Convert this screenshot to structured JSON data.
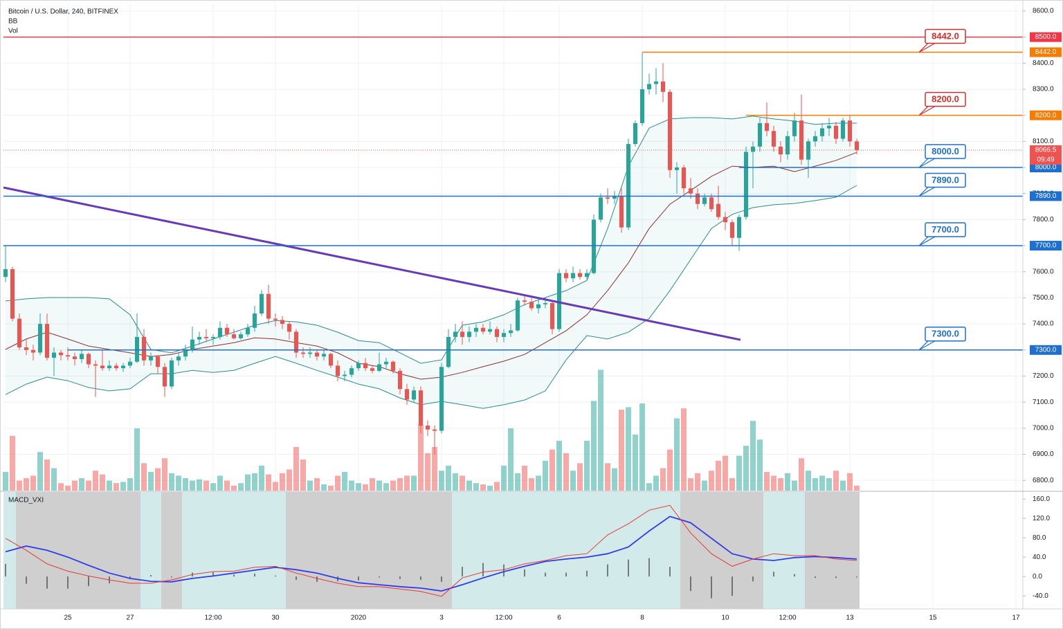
{
  "chart_data": {
    "type": "candlestick",
    "title": "Bitcoin / U.S. Dollar, 240, BITFINEX",
    "indicators": [
      "BB",
      "Vol"
    ],
    "up_color": "#26a69a",
    "down_color": "#ef5350",
    "candles": [
      [
        7580,
        7700,
        7560,
        7610
      ],
      [
        7610,
        7620,
        7410,
        7420
      ],
      [
        7420,
        7440,
        7300,
        7310
      ],
      [
        7310,
        7340,
        7280,
        7300
      ],
      [
        7300,
        7320,
        7260,
        7290
      ],
      [
        7290,
        7440,
        7280,
        7400
      ],
      [
        7400,
        7440,
        7260,
        7270
      ],
      [
        7270,
        7310,
        7200,
        7290
      ],
      [
        7290,
        7300,
        7260,
        7280
      ],
      [
        7280,
        7310,
        7260,
        7275
      ],
      [
        7275,
        7290,
        7240,
        7265
      ],
      [
        7265,
        7300,
        7250,
        7285
      ],
      [
        7285,
        7290,
        7230,
        7245
      ],
      [
        7245,
        7260,
        7120,
        7240
      ],
      [
        7240,
        7300,
        7220,
        7230
      ],
      [
        7230,
        7260,
        7220,
        7240
      ],
      [
        7240,
        7250,
        7220,
        7230
      ],
      [
        7230,
        7250,
        7215,
        7240
      ],
      [
        7240,
        7270,
        7230,
        7255
      ],
      [
        7255,
        7440,
        7250,
        7350
      ],
      [
        7350,
        7380,
        7240,
        7260
      ],
      [
        7260,
        7290,
        7240,
        7275
      ],
      [
        7275,
        7280,
        7210,
        7235
      ],
      [
        7235,
        7250,
        7120,
        7160
      ],
      [
        7160,
        7270,
        7150,
        7260
      ],
      [
        7260,
        7290,
        7240,
        7275
      ],
      [
        7275,
        7320,
        7260,
        7300
      ],
      [
        7300,
        7390,
        7290,
        7340
      ],
      [
        7340,
        7370,
        7320,
        7350
      ],
      [
        7350,
        7380,
        7330,
        7345
      ],
      [
        7345,
        7360,
        7320,
        7350
      ],
      [
        7350,
        7410,
        7340,
        7385
      ],
      [
        7385,
        7400,
        7350,
        7360
      ],
      [
        7360,
        7380,
        7340,
        7345
      ],
      [
        7345,
        7370,
        7340,
        7360
      ],
      [
        7360,
        7400,
        7350,
        7385
      ],
      [
        7385,
        7470,
        7370,
        7440
      ],
      [
        7440,
        7530,
        7430,
        7515
      ],
      [
        7515,
        7550,
        7400,
        7420
      ],
      [
        7420,
        7440,
        7390,
        7415
      ],
      [
        7415,
        7430,
        7380,
        7400
      ],
      [
        7400,
        7410,
        7340,
        7370
      ],
      [
        7370,
        7380,
        7270,
        7290
      ],
      [
        7290,
        7310,
        7270,
        7285
      ],
      [
        7285,
        7310,
        7270,
        7290
      ],
      [
        7290,
        7300,
        7260,
        7275
      ],
      [
        7275,
        7300,
        7260,
        7285
      ],
      [
        7285,
        7290,
        7230,
        7240
      ],
      [
        7240,
        7260,
        7180,
        7200
      ],
      [
        7200,
        7220,
        7180,
        7205
      ],
      [
        7205,
        7240,
        7195,
        7230
      ],
      [
        7230,
        7260,
        7220,
        7250
      ],
      [
        7250,
        7270,
        7220,
        7230
      ],
      [
        7230,
        7240,
        7210,
        7220
      ],
      [
        7220,
        7290,
        7215,
        7245
      ],
      [
        7245,
        7270,
        7230,
        7255
      ],
      [
        7255,
        7260,
        7210,
        7220
      ],
      [
        7220,
        7230,
        7130,
        7150
      ],
      [
        7150,
        7170,
        7090,
        7110
      ],
      [
        7110,
        7160,
        7100,
        7145
      ],
      [
        7145,
        7160,
        6980,
        7010
      ],
      [
        7010,
        7030,
        6970,
        6995
      ],
      [
        6995,
        7010,
        6900,
        6990
      ],
      [
        6990,
        7250,
        6980,
        7235
      ],
      [
        7235,
        7380,
        7230,
        7350
      ],
      [
        7350,
        7400,
        7330,
        7370
      ],
      [
        7370,
        7410,
        7320,
        7350
      ],
      [
        7350,
        7390,
        7330,
        7370
      ],
      [
        7370,
        7400,
        7350,
        7385
      ],
      [
        7385,
        7400,
        7360,
        7370
      ],
      [
        7370,
        7410,
        7360,
        7380
      ],
      [
        7380,
        7390,
        7330,
        7350
      ],
      [
        7350,
        7380,
        7330,
        7365
      ],
      [
        7365,
        7400,
        7350,
        7375
      ],
      [
        7375,
        7500,
        7370,
        7490
      ],
      [
        7490,
        7510,
        7470,
        7485
      ],
      [
        7485,
        7500,
        7450,
        7460
      ],
      [
        7460,
        7490,
        7440,
        7475
      ],
      [
        7475,
        7500,
        7460,
        7480
      ],
      [
        7480,
        7490,
        7360,
        7380
      ],
      [
        7380,
        7610,
        7370,
        7595
      ],
      [
        7595,
        7610,
        7560,
        7575
      ],
      [
        7575,
        7620,
        7560,
        7595
      ],
      [
        7595,
        7610,
        7570,
        7580
      ],
      [
        7580,
        7610,
        7570,
        7595
      ],
      [
        7595,
        7820,
        7590,
        7800
      ],
      [
        7800,
        7900,
        7790,
        7885
      ],
      [
        7885,
        7920,
        7860,
        7880
      ],
      [
        7880,
        7910,
        7860,
        7890
      ],
      [
        7890,
        7920,
        7750,
        7770
      ],
      [
        7770,
        8110,
        7760,
        8090
      ],
      [
        8090,
        8180,
        8080,
        8170
      ],
      [
        8170,
        8442,
        8160,
        8300
      ],
      [
        8300,
        8360,
        8280,
        8320
      ],
      [
        8320,
        8380,
        8280,
        8330
      ],
      [
        8330,
        8400,
        8250,
        8290
      ],
      [
        8290,
        8300,
        7960,
        7990
      ],
      [
        7990,
        8020,
        7900,
        8000
      ],
      [
        8000,
        8010,
        7900,
        7920
      ],
      [
        7920,
        7960,
        7880,
        7900
      ],
      [
        7900,
        7920,
        7840,
        7860
      ],
      [
        7860,
        7900,
        7850,
        7885
      ],
      [
        7885,
        7900,
        7830,
        7840
      ],
      [
        7860,
        7930,
        7800,
        7810
      ],
      [
        7810,
        7830,
        7760,
        7790
      ],
      [
        7790,
        7800,
        7700,
        7730
      ],
      [
        7730,
        7820,
        7680,
        7810
      ],
      [
        7810,
        8080,
        7800,
        8060
      ],
      [
        8060,
        8100,
        7920,
        8080
      ],
      [
        8080,
        8190,
        8060,
        8170
      ],
      [
        8170,
        8250,
        8120,
        8140
      ],
      [
        8140,
        8160,
        8060,
        8080
      ],
      [
        8080,
        8100,
        8020,
        8050
      ],
      [
        8050,
        8140,
        8030,
        8120
      ],
      [
        8120,
        8210,
        8100,
        8180
      ],
      [
        8180,
        8280,
        8010,
        8030
      ],
      [
        8030,
        8110,
        7960,
        8100
      ],
      [
        8100,
        8140,
        8080,
        8120
      ],
      [
        8120,
        8170,
        8100,
        8150
      ],
      [
        8150,
        8190,
        8120,
        8160
      ],
      [
        8160,
        8175,
        8090,
        8110
      ],
      [
        8110,
        8190,
        8100,
        8180
      ],
      [
        8180,
        8200,
        8080,
        8100
      ],
      [
        8100,
        8110,
        8050,
        8066.5
      ]
    ],
    "volume": [
      15,
      44,
      8,
      10,
      12,
      31,
      25,
      18,
      6,
      4,
      8,
      10,
      8,
      16,
      13,
      8,
      6,
      7,
      10,
      50,
      22,
      15,
      18,
      26,
      14,
      12,
      10,
      8,
      9,
      8,
      6,
      12,
      8,
      4,
      6,
      13,
      14,
      20,
      13,
      7,
      14,
      17,
      35,
      25,
      8,
      10,
      5,
      4,
      12,
      15,
      8,
      6,
      5,
      10,
      8,
      6,
      8,
      10,
      12,
      12,
      53,
      30,
      35,
      16,
      20,
      14,
      12,
      8,
      6,
      5,
      4,
      7,
      20,
      50,
      14,
      20,
      10,
      12,
      24,
      33,
      40,
      30,
      16,
      22,
      40,
      72,
      97,
      22,
      18,
      65,
      67,
      45,
      70,
      6,
      12,
      18,
      33,
      58,
      66,
      10,
      14,
      8,
      16,
      24,
      28,
      10,
      28,
      36,
      56,
      41,
      15,
      12,
      10,
      14,
      8,
      26,
      16,
      10,
      12,
      10,
      16,
      8,
      14,
      4
    ],
    "volume_lim": [
      0,
      100
    ],
    "xlim": [
      -0.3,
      147
    ],
    "xticks": [
      {
        "value": 9,
        "label": "25"
      },
      {
        "value": 18,
        "label": "27"
      },
      {
        "value": 30,
        "label": "12:00"
      },
      {
        "value": 39,
        "label": "30"
      },
      {
        "value": 51,
        "label": "2020"
      },
      {
        "value": 63,
        "label": "3"
      },
      {
        "value": 72,
        "label": "12:00"
      },
      {
        "value": 80,
        "label": "6"
      },
      {
        "value": 92,
        "label": "8"
      },
      {
        "value": 104,
        "label": "10"
      },
      {
        "value": 113,
        "label": "12:00"
      },
      {
        "value": 122,
        "label": "13"
      },
      {
        "value": 134,
        "label": "15"
      },
      {
        "value": 146,
        "label": "17"
      }
    ],
    "ylim": [
      6758,
      8629
    ],
    "yticks": [
      {
        "value": 6800,
        "label": "6800.0"
      },
      {
        "value": 6900,
        "label": "6900.0"
      },
      {
        "value": 7000,
        "label": "7000.0"
      },
      {
        "value": 7100,
        "label": "7100.0"
      },
      {
        "value": 7200,
        "label": "7200.0"
      },
      {
        "value": 7300,
        "label": "7300.0"
      },
      {
        "value": 7400,
        "label": "7400.0"
      },
      {
        "value": 7500,
        "label": "7500.0"
      },
      {
        "value": 7600,
        "label": "7600.0"
      },
      {
        "value": 7700,
        "label": "7700.0"
      },
      {
        "value": 7800,
        "label": "7800.0"
      },
      {
        "value": 7900,
        "label": "7900.0"
      },
      {
        "value": 8000,
        "label": "8000.0"
      },
      {
        "value": 8100,
        "label": "8100.0"
      },
      {
        "value": 8200,
        "label": "8200.0"
      },
      {
        "value": 8300,
        "label": "8300.0"
      },
      {
        "value": 8400,
        "label": "8400.0"
      },
      {
        "value": 8500,
        "label": "8500.0"
      },
      {
        "value": 8600,
        "label": "8600.0"
      }
    ],
    "grid": true,
    "bands": {
      "x": [
        0,
        3,
        6,
        9,
        12,
        15,
        18,
        21,
        24,
        27,
        30,
        33,
        36,
        39,
        42,
        45,
        48,
        51,
        54,
        57,
        60,
        63,
        66,
        69,
        72,
        75,
        78,
        81,
        84,
        87,
        90,
        93,
        96,
        99,
        102,
        105,
        108,
        111,
        114,
        117,
        120,
        123
      ],
      "upper": [
        7488,
        7496,
        7501,
        7501,
        7501,
        7496,
        7435,
        7302,
        7289,
        7315,
        7342,
        7368,
        7395,
        7413,
        7408,
        7395,
        7368,
        7336,
        7328,
        7289,
        7249,
        7262,
        7395,
        7408,
        7435,
        7474,
        7501,
        7528,
        7567,
        7766,
        8005,
        8151,
        8186,
        8191,
        8191,
        8186,
        8197,
        8186,
        8178,
        8165,
        8170,
        8170
      ],
      "middle": [
        7302,
        7342,
        7368,
        7342,
        7315,
        7302,
        7289,
        7275,
        7283,
        7302,
        7315,
        7328,
        7347,
        7342,
        7328,
        7315,
        7289,
        7249,
        7236,
        7209,
        7188,
        7196,
        7214,
        7236,
        7257,
        7283,
        7328,
        7374,
        7435,
        7528,
        7634,
        7766,
        7859,
        7912,
        7966,
        8005,
        8000,
        8005,
        7984,
        8005,
        8027,
        8058
      ],
      "lower": [
        7129,
        7169,
        7196,
        7182,
        7156,
        7143,
        7151,
        7209,
        7209,
        7222,
        7214,
        7222,
        7249,
        7275,
        7249,
        7222,
        7196,
        7169,
        7151,
        7116,
        7090,
        7103,
        7090,
        7076,
        7090,
        7108,
        7143,
        7262,
        7355,
        7342,
        7368,
        7421,
        7528,
        7647,
        7766,
        7820,
        7846,
        7857,
        7862,
        7873,
        7886,
        7931
      ],
      "color": "#2a8c8c",
      "middle_color": "#8e2f2f"
    },
    "trendline": {
      "x": [
        -0.3,
        106.2
      ],
      "y": [
        7923,
        7339
      ],
      "color": "#673ab7"
    },
    "levels": [
      {
        "value": 8500,
        "label": "8500.0",
        "color": "#f23645"
      },
      {
        "value": 8442,
        "label": "8442.0",
        "color": "#f57c00",
        "start": 92,
        "callout": true,
        "callout_color": "#d32f2f"
      },
      {
        "value": 8200,
        "label": "8200.0",
        "color": "#f57c00",
        "start": 107,
        "callout": true,
        "callout_color": "#d32f2f"
      },
      {
        "value": 8000,
        "label": "8000.0",
        "color": "#1e6fd0",
        "start": 106,
        "callout": true,
        "callout_color": "#1e6fd0"
      },
      {
        "value": 7890,
        "label": "7890.0",
        "color": "#1e6fd0",
        "callout": true,
        "callout_color": "#1e6fd0"
      },
      {
        "value": 7700,
        "label": "7700.0",
        "color": "#1e6fd0",
        "callout": true,
        "callout_color": "#1e6fd0"
      },
      {
        "value": 7300,
        "label": "7300.0",
        "color": "#1e6fd0",
        "start": 9,
        "callout": true,
        "callout_color": "#1e6fd0"
      }
    ],
    "last": {
      "value": 8066.5,
      "label": "8066.5",
      "countdown": "09:49",
      "color": "#ef5350"
    },
    "macd": {
      "title": "MACD_VXI",
      "x": [
        0,
        3,
        6,
        9,
        12,
        15,
        18,
        21,
        24,
        27,
        30,
        33,
        36,
        39,
        42,
        45,
        48,
        51,
        54,
        57,
        60,
        63,
        66,
        69,
        72,
        75,
        78,
        81,
        84,
        87,
        90,
        93,
        96,
        99,
        102,
        105,
        108,
        111,
        114,
        117,
        120,
        123
      ],
      "lines": [
        {
          "color": "#2f3de8",
          "values": [
            51,
            63,
            54,
            40,
            23,
            7,
            -4,
            -10,
            -11,
            -4,
            1,
            7,
            13,
            19,
            14,
            7,
            -4,
            -13,
            -17,
            -21,
            -24,
            -30,
            -17,
            -3,
            10,
            21,
            31,
            36,
            40,
            47,
            61,
            94,
            124,
            111,
            79,
            47,
            36,
            33,
            39,
            41,
            39,
            36
          ]
        },
        {
          "color": "#e53935",
          "values": [
            79,
            54,
            26,
            11,
            1,
            -7,
            -14,
            -14,
            -7,
            4,
            10,
            11,
            19,
            21,
            7,
            -4,
            -14,
            -21,
            -21,
            -26,
            -31,
            -41,
            -3,
            9,
            14,
            26,
            33,
            43,
            47,
            86,
            109,
            137,
            147,
            90,
            47,
            21,
            36,
            47,
            43,
            43,
            36,
            33
          ]
        }
      ],
      "hist": [
        26,
        -15,
        -25,
        -25,
        -20,
        -14,
        -5,
        3,
        -2,
        8,
        9,
        4,
        6,
        2,
        -7,
        -11,
        -10,
        -8,
        -2,
        -5,
        -7,
        -11,
        20,
        28,
        25,
        15,
        8,
        8,
        12,
        25,
        35,
        38,
        20,
        -30,
        -45,
        -40,
        -10,
        10,
        5,
        -3,
        -3,
        -2
      ],
      "ylim": [
        -67,
        176
      ],
      "yticks": [
        {
          "value": 160,
          "label": "160.0"
        },
        {
          "value": 120,
          "label": "120.0"
        },
        {
          "value": 80,
          "label": "80.0"
        },
        {
          "value": 40,
          "label": "40.0"
        },
        {
          "value": 0,
          "label": "0.0"
        },
        {
          "value": -40,
          "label": "-40.0"
        }
      ],
      "neg_color": "#cfcfcf",
      "pos_color": "#d3eaea"
    }
  }
}
